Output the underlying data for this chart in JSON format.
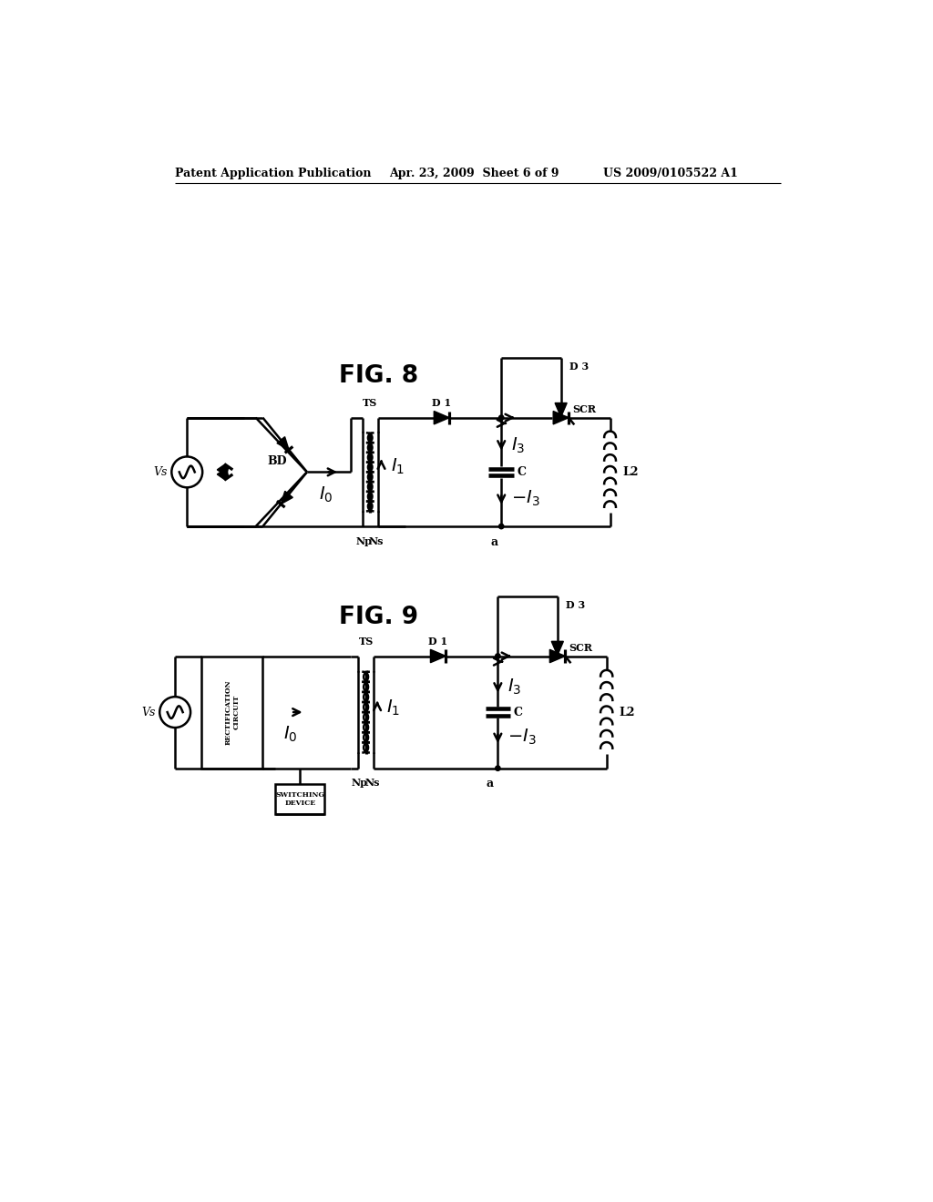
{
  "bg_color": "#ffffff",
  "header_left": "Patent Application Publication",
  "header_mid": "Apr. 23, 2009  Sheet 6 of 9",
  "header_right": "US 2009/0105522 A1",
  "fig8_label": "FIG. 8",
  "fig9_label": "FIG. 9"
}
